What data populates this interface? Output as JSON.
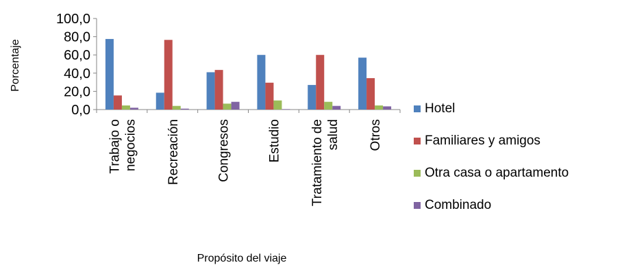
{
  "chart_data": {
    "type": "bar",
    "title": "",
    "xlabel": "Propósito del viaje",
    "ylabel": "Porcentaje",
    "ylim": [
      0,
      100
    ],
    "y_ticks": [
      "0,0",
      "20,0",
      "40,0",
      "60,0",
      "80,0",
      "100,0"
    ],
    "y_tick_values": [
      0,
      20,
      40,
      60,
      80,
      100
    ],
    "grid": false,
    "legend_position": "right",
    "categories": [
      [
        "Trabajo o",
        "negocios"
      ],
      [
        "Recreación"
      ],
      [
        "Congresos"
      ],
      [
        "Estudio"
      ],
      [
        "Tratamiento de",
        "salud"
      ],
      [
        "Otros"
      ]
    ],
    "series": [
      {
        "name": "Hotel",
        "color": "#4F81BD",
        "values": [
          77.5,
          18.5,
          41.0,
          60.0,
          27.0,
          57.0
        ]
      },
      {
        "name": "Familiares y amigos",
        "color": "#C0504D",
        "values": [
          15.5,
          76.5,
          43.5,
          29.5,
          60.0,
          34.5
        ]
      },
      {
        "name": "Otra casa o apartamento",
        "color": "#9BBB59",
        "values": [
          4.5,
          4.0,
          6.5,
          10.0,
          8.5,
          4.5
        ]
      },
      {
        "name": "Combinado",
        "color": "#8064A2",
        "values": [
          2.0,
          1.0,
          8.5,
          0.5,
          4.0,
          3.5
        ]
      }
    ]
  }
}
